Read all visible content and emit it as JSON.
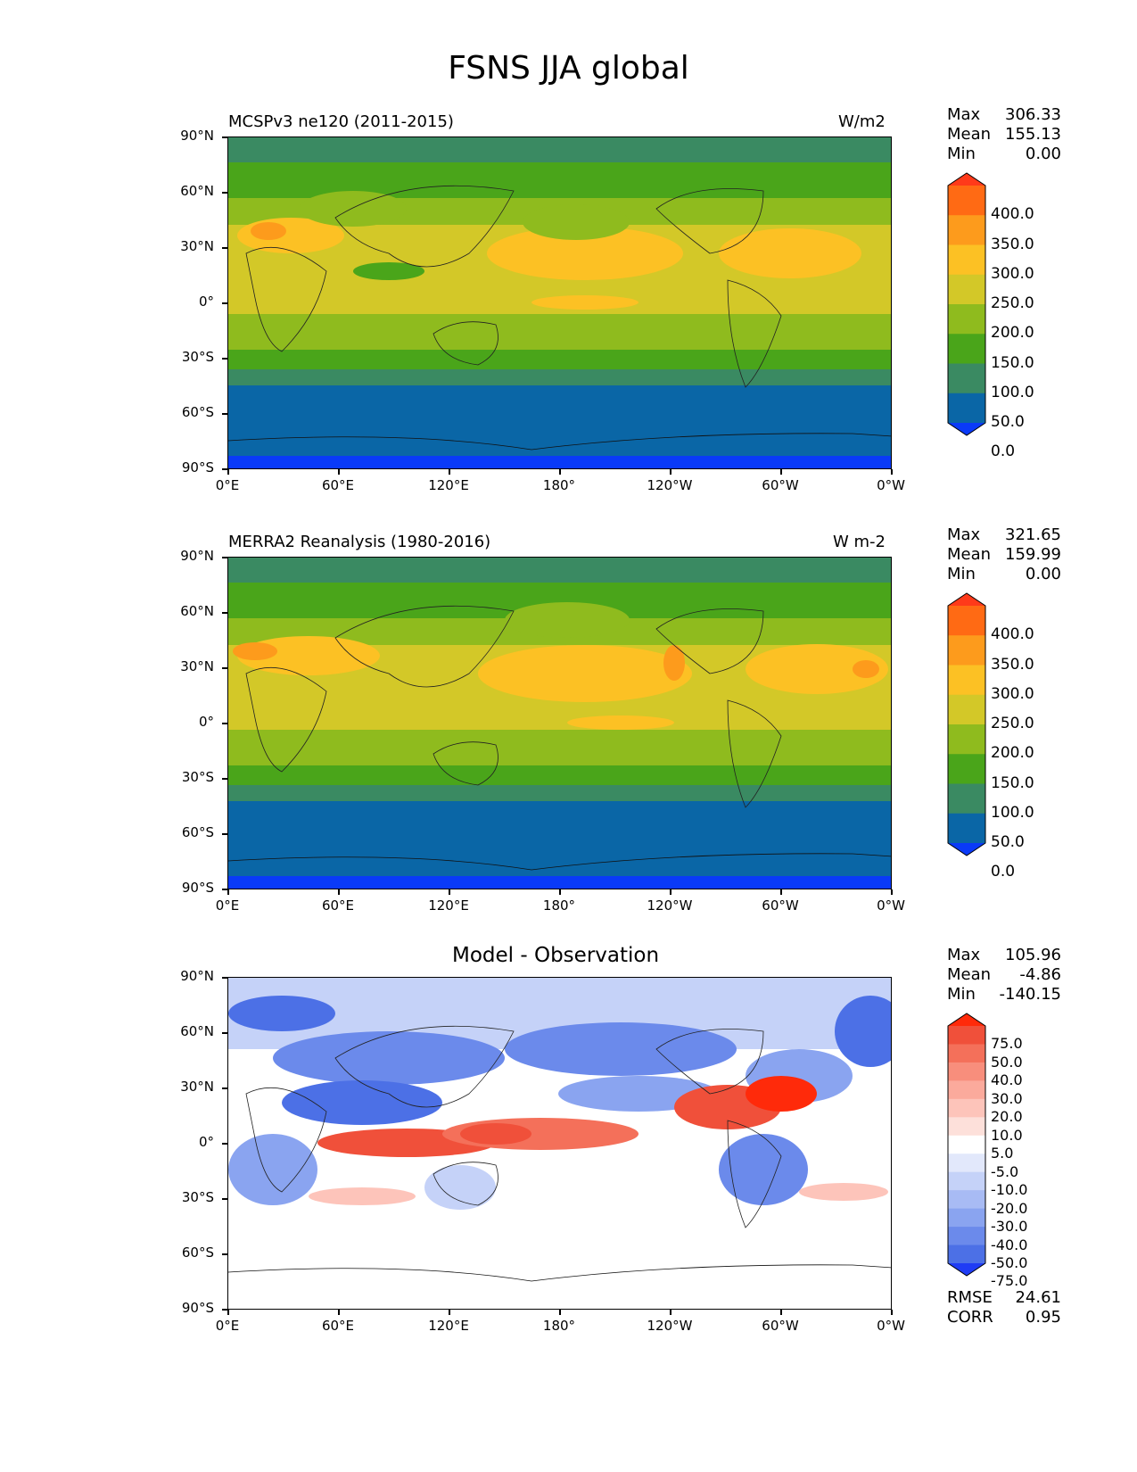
{
  "title": "FSNS JJA global",
  "panels": [
    {
      "left_title": "MCSPv3 ne120 (2011-2015)",
      "right_title": "W/m2",
      "stats": {
        "max_label": "Max",
        "max": "306.33",
        "mean_label": "Mean",
        "mean": "155.13",
        "min_label": "Min",
        "min": "0.00"
      }
    },
    {
      "left_title": "MERRA2 Reanalysis (1980-2016)",
      "right_title": "W m-2",
      "stats": {
        "max_label": "Max",
        "max": "321.65",
        "mean_label": "Mean",
        "mean": "159.99",
        "min_label": "Min",
        "min": "0.00"
      }
    },
    {
      "center_title": "Model - Observation",
      "stats": {
        "max_label": "Max",
        "max": "105.96",
        "mean_label": "Mean",
        "mean": "-4.86",
        "min_label": "Min",
        "min": "-140.15"
      },
      "metrics": {
        "rmse_label": "RMSE",
        "rmse": "24.61",
        "corr_label": "CORR",
        "corr": "0.95"
      }
    }
  ],
  "axes": {
    "lat_ticks": [
      "90°N",
      "60°N",
      "30°N",
      "0°",
      "30°S",
      "60°S",
      "90°S"
    ],
    "lon_ticks": [
      "0°E",
      "60°E",
      "120°E",
      "180°",
      "120°W",
      "60°W",
      "0°W"
    ]
  },
  "colorbars": {
    "absolute": {
      "levels": [
        "400.0",
        "350.0",
        "300.0",
        "250.0",
        "200.0",
        "150.0",
        "100.0",
        "50.0",
        "0.0"
      ],
      "colors": [
        "#ff3a1a",
        "#ff6a14",
        "#fd9b1c",
        "#fcc124",
        "#d3c828",
        "#8fbb1e",
        "#4aa51a",
        "#3a8a62",
        "#0a66a6",
        "#0a3af8"
      ]
    },
    "difference": {
      "levels": [
        "75.0",
        "50.0",
        "40.0",
        "30.0",
        "20.0",
        "10.0",
        "5.0",
        "-5.0",
        "-10.0",
        "-20.0",
        "-30.0",
        "-40.0",
        "-50.0",
        "-75.0"
      ],
      "colors": [
        "#ff2a0a",
        "#f0503a",
        "#f4705a",
        "#f88e7c",
        "#fbaa9c",
        "#fdc4ba",
        "#fde0da",
        "#ffffff",
        "#e2e8fb",
        "#c5d2f8",
        "#a8bbf4",
        "#8aa4f0",
        "#6b8aeb",
        "#4c70e6",
        "#1f3cf5"
      ]
    }
  },
  "chart_data": [
    {
      "type": "heatmap",
      "title": "MCSPv3 ne120 (2011-2015)",
      "units": "W/m2",
      "x_range": [
        0,
        360
      ],
      "y_range": [
        -90,
        90
      ],
      "stats": {
        "max": 306.33,
        "mean": 155.13,
        "min": 0.0
      }
    },
    {
      "type": "heatmap",
      "title": "MERRA2 Reanalysis (1980-2016)",
      "units": "W m-2",
      "x_range": [
        0,
        360
      ],
      "y_range": [
        -90,
        90
      ],
      "stats": {
        "max": 321.65,
        "mean": 159.99,
        "min": 0.0
      }
    },
    {
      "type": "heatmap",
      "title": "Model - Observation",
      "x_range": [
        0,
        360
      ],
      "y_range": [
        -90,
        90
      ],
      "stats": {
        "max": 105.96,
        "mean": -4.86,
        "min": -140.15,
        "rmse": 24.61,
        "corr": 0.95
      }
    }
  ]
}
